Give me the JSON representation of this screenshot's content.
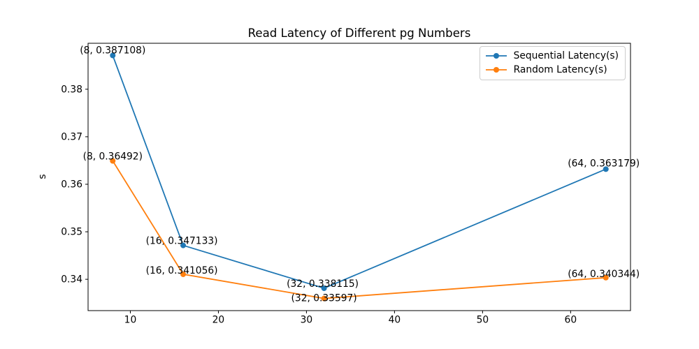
{
  "figure": {
    "background": "#ffffff"
  },
  "chart_data": {
    "type": "line",
    "title": "Read Latency of Different pg Numbers",
    "xlabel": "",
    "ylabel": "s",
    "x": [
      8,
      16,
      32,
      64
    ],
    "series": [
      {
        "name": "Sequential Latency(s)",
        "color": "#1f77b4",
        "values": [
          0.387108,
          0.347133,
          0.338115,
          0.363179
        ],
        "point_labels": [
          "(8, 0.387108)",
          "(16, 0.347133)",
          "(32, 0.338115)",
          "(64, 0.363179)"
        ],
        "label_offsets": [
          [
            0,
            -3
          ],
          [
            -2,
            -2
          ],
          [
            -2,
            -2
          ],
          [
            -3,
            -4
          ]
        ]
      },
      {
        "name": "Random Latency(s)",
        "color": "#ff7f0e",
        "values": [
          0.36492,
          0.341056,
          0.33597,
          0.340344
        ],
        "point_labels": [
          "(8, 0.36492)",
          "(16, 0.341056)",
          "(32, 0.33597)",
          "(64, 0.340344)"
        ],
        "label_offsets": [
          [
            0,
            -2
          ],
          [
            -2,
            -1
          ],
          [
            0,
            4
          ],
          [
            -3,
            -1
          ]
        ]
      }
    ],
    "xticks": [
      10,
      20,
      30,
      40,
      50,
      60
    ],
    "yticks": [
      0.34,
      0.35,
      0.36,
      0.37,
      0.38
    ],
    "xlim": [
      5.2,
      66.8
    ],
    "ylim": [
      0.33341,
      0.38967
    ],
    "grid": false,
    "legend_position": "upper right",
    "axis_color": "#000000"
  }
}
